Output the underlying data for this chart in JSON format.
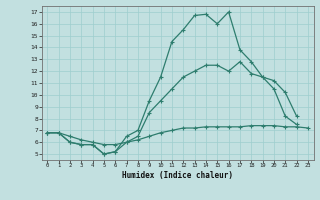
{
  "xlabel": "Humidex (Indice chaleur)",
  "bg_color": "#c2e0e0",
  "line_color": "#2e7d6e",
  "grid_color": "#9ecece",
  "xlim": [
    -0.5,
    23.5
  ],
  "ylim": [
    4.5,
    17.5
  ],
  "xticks": [
    0,
    1,
    2,
    3,
    4,
    5,
    6,
    7,
    8,
    9,
    10,
    11,
    12,
    13,
    14,
    15,
    16,
    17,
    18,
    19,
    20,
    21,
    22,
    23
  ],
  "yticks": [
    5,
    6,
    7,
    8,
    9,
    10,
    11,
    12,
    13,
    14,
    15,
    16,
    17
  ],
  "line1_x": [
    0,
    1,
    2,
    3,
    4,
    5,
    6,
    7,
    8,
    9,
    10,
    11,
    12,
    13,
    14,
    15,
    16,
    17,
    18,
    19,
    20,
    21,
    22,
    23
  ],
  "line1_y": [
    6.8,
    6.8,
    6.0,
    5.8,
    5.8,
    5.0,
    5.2,
    6.5,
    7.0,
    9.5,
    11.5,
    14.5,
    15.5,
    16.7,
    16.8,
    16.0,
    17.0,
    13.8,
    12.8,
    11.5,
    10.5,
    8.2,
    7.5,
    null
  ],
  "line2_x": [
    0,
    1,
    2,
    3,
    4,
    5,
    6,
    7,
    8,
    9,
    10,
    11,
    12,
    13,
    14,
    15,
    16,
    17,
    18,
    19,
    20,
    21,
    22,
    23
  ],
  "line2_y": [
    6.8,
    6.8,
    6.0,
    5.8,
    5.8,
    5.0,
    5.2,
    6.0,
    6.5,
    8.5,
    9.5,
    10.5,
    11.5,
    12.0,
    12.5,
    12.5,
    12.0,
    12.8,
    11.8,
    11.5,
    11.2,
    10.2,
    8.2,
    null
  ],
  "line3_x": [
    0,
    1,
    2,
    3,
    4,
    5,
    6,
    7,
    8,
    9,
    10,
    11,
    12,
    13,
    14,
    15,
    16,
    17,
    18,
    19,
    20,
    21,
    22,
    23
  ],
  "line3_y": [
    6.8,
    6.8,
    6.5,
    6.2,
    6.0,
    5.8,
    5.8,
    6.0,
    6.2,
    6.5,
    6.8,
    7.0,
    7.2,
    7.2,
    7.3,
    7.3,
    7.3,
    7.3,
    7.4,
    7.4,
    7.4,
    7.3,
    7.3,
    7.2
  ]
}
